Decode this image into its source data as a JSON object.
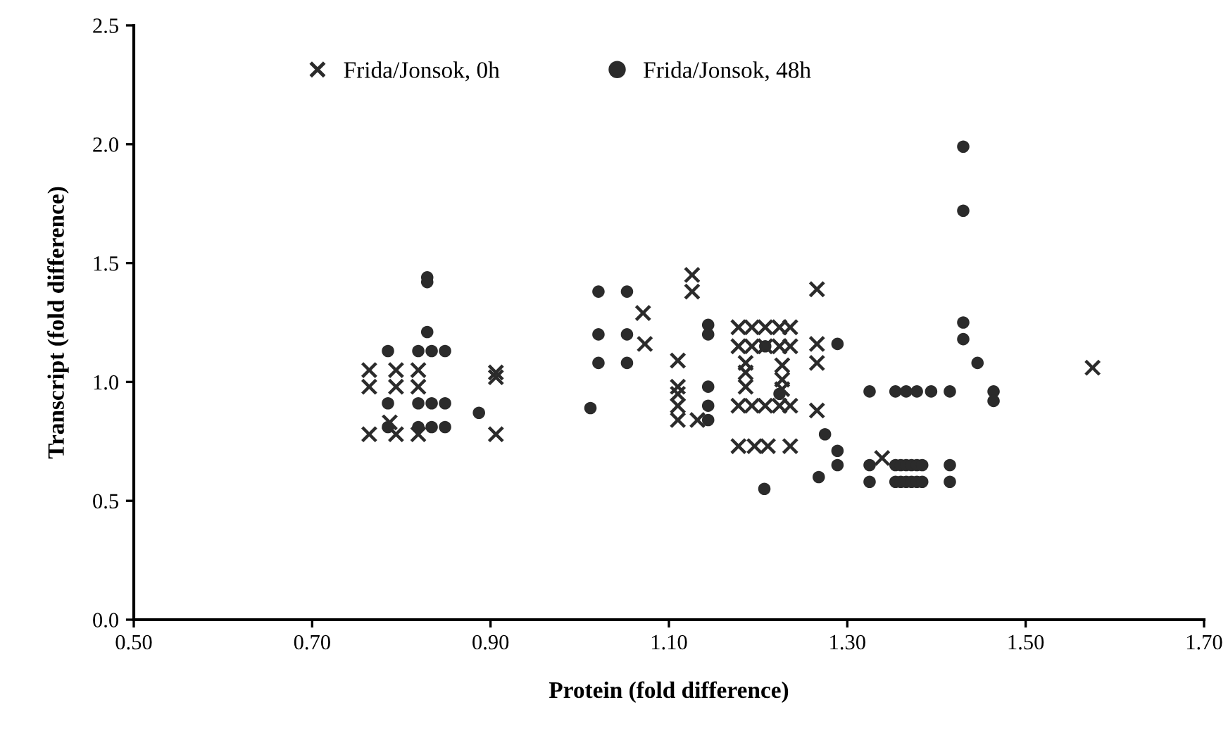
{
  "chart_data": {
    "type": "scatter",
    "xlabel": "Protein (fold difference)",
    "ylabel": "Transcript (fold difference)",
    "xlim": [
      0.5,
      1.7
    ],
    "xticks": [
      {
        "value": 0.5,
        "label": "0.50"
      },
      {
        "value": 0.7,
        "label": "0.70"
      },
      {
        "value": 0.9,
        "label": "0.90"
      },
      {
        "value": 1.1,
        "label": "1.10"
      },
      {
        "value": 1.3,
        "label": "1.30"
      },
      {
        "value": 1.5,
        "label": "1.50"
      },
      {
        "value": 1.7,
        "label": "1.70"
      }
    ],
    "ylim": [
      0,
      2.5
    ],
    "yticks": [
      {
        "value": 0,
        "label": "0.0"
      },
      {
        "value": 0.5,
        "label": "0.5"
      },
      {
        "value": 1.0,
        "label": "1.0"
      },
      {
        "value": 1.5,
        "label": "1.5"
      },
      {
        "value": 2.0,
        "label": "2.0"
      },
      {
        "value": 2.5,
        "label": "2.5"
      }
    ],
    "grid": false,
    "legend": "top left",
    "series": [
      {
        "name": "Frida/Jonsok, 0h",
        "color": "#2b2b2b",
        "marker": "cross",
        "x": [
          0.764,
          0.764,
          0.764,
          0.794,
          0.794,
          0.794,
          0.787,
          0.819,
          0.819,
          0.819,
          0.906,
          0.906,
          0.906,
          1.126,
          1.126,
          1.071,
          1.073,
          1.11,
          1.11,
          1.11,
          1.11,
          1.11,
          1.132,
          1.178,
          1.193,
          1.208,
          1.224,
          1.236,
          1.178,
          1.193,
          1.208,
          1.224,
          1.236,
          1.186,
          1.186,
          1.186,
          1.227,
          1.227,
          1.227,
          1.178,
          1.193,
          1.208,
          1.224,
          1.236,
          1.178,
          1.196,
          1.211,
          1.236,
          1.266,
          1.266,
          1.266,
          1.266,
          1.339,
          1.575
        ],
        "values": [
          1.05,
          0.98,
          0.78,
          1.05,
          0.98,
          0.78,
          0.83,
          1.05,
          0.98,
          0.78,
          1.04,
          1.02,
          0.78,
          1.45,
          1.38,
          1.29,
          1.16,
          1.09,
          0.98,
          0.95,
          0.9,
          0.84,
          0.84,
          1.23,
          1.23,
          1.23,
          1.23,
          1.23,
          1.15,
          1.15,
          1.15,
          1.15,
          1.15,
          1.08,
          1.04,
          0.98,
          1.07,
          1.01,
          0.97,
          0.9,
          0.9,
          0.9,
          0.9,
          0.9,
          0.73,
          0.73,
          0.73,
          0.73,
          1.39,
          1.16,
          1.08,
          0.88,
          0.68,
          1.06
        ]
      },
      {
        "name": "Frida/Jonsok, 48h",
        "color": "#2b2b2b",
        "marker": "circle",
        "x": [
          0.785,
          0.785,
          0.785,
          0.829,
          0.829,
          0.829,
          0.819,
          0.819,
          0.819,
          0.834,
          0.834,
          0.834,
          0.849,
          0.849,
          0.849,
          0.887,
          1.021,
          1.021,
          1.021,
          1.053,
          1.053,
          1.053,
          1.012,
          1.144,
          1.144,
          1.144,
          1.144,
          1.144,
          1.207,
          1.208,
          1.224,
          1.289,
          1.275,
          1.289,
          1.289,
          1.268,
          1.325,
          1.354,
          1.366,
          1.378,
          1.394,
          1.415,
          1.325,
          1.354,
          1.36,
          1.366,
          1.372,
          1.378,
          1.384,
          1.415,
          1.325,
          1.354,
          1.36,
          1.366,
          1.372,
          1.378,
          1.384,
          1.415,
          1.43,
          1.43,
          1.43,
          1.43,
          1.446,
          1.464,
          1.464
        ],
        "values": [
          1.13,
          0.91,
          0.81,
          1.44,
          1.42,
          1.21,
          1.13,
          0.91,
          0.81,
          1.13,
          0.91,
          0.81,
          1.13,
          0.91,
          0.81,
          0.87,
          1.38,
          1.2,
          1.08,
          1.38,
          1.2,
          1.08,
          0.89,
          1.24,
          1.2,
          0.98,
          0.9,
          0.84,
          0.55,
          1.15,
          0.95,
          1.16,
          0.78,
          0.71,
          0.65,
          0.6,
          0.96,
          0.96,
          0.96,
          0.96,
          0.96,
          0.96,
          0.65,
          0.65,
          0.65,
          0.65,
          0.65,
          0.65,
          0.65,
          0.65,
          0.58,
          0.58,
          0.58,
          0.58,
          0.58,
          0.58,
          0.58,
          0.58,
          1.99,
          1.72,
          1.25,
          1.18,
          1.08,
          0.96,
          0.92
        ]
      }
    ]
  }
}
